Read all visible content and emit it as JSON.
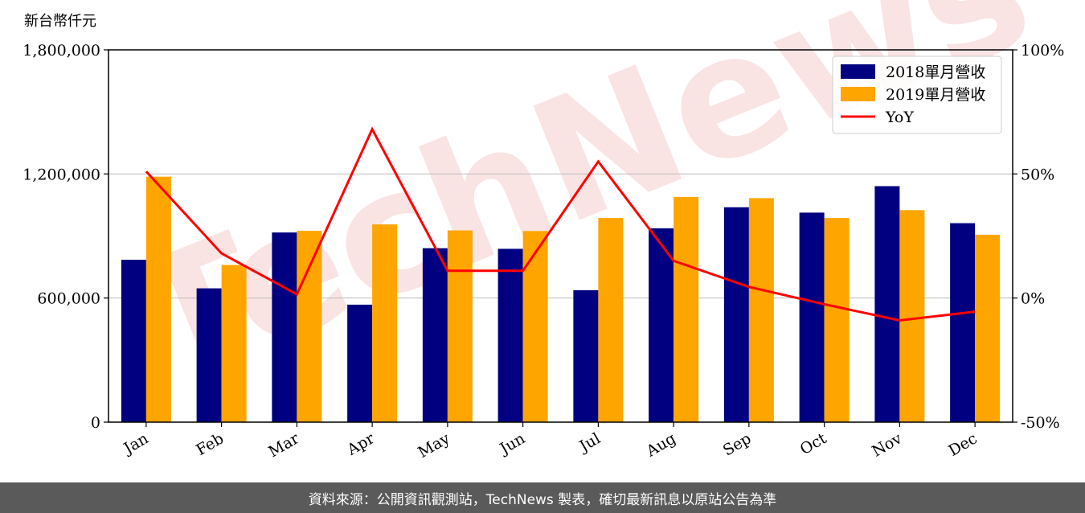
{
  "chart_data": {
    "type": "bar",
    "ylabel": "新台幣仟元",
    "categories": [
      "Jan",
      "Feb",
      "Mar",
      "Apr",
      "May",
      "Jun",
      "Jul",
      "Aug",
      "Sep",
      "Oct",
      "Nov",
      "Dec"
    ],
    "series": [
      {
        "name": "2018單月營收",
        "color": "#000080",
        "values": [
          785000,
          647000,
          917000,
          568000,
          841000,
          838000,
          638000,
          937000,
          1039000,
          1013000,
          1141000,
          962000
        ]
      },
      {
        "name": "2019單月營收",
        "color": "#ffa500",
        "values": [
          1187000,
          760000,
          925000,
          956000,
          927000,
          924000,
          987000,
          1089000,
          1083000,
          987000,
          1025000,
          906000
        ]
      }
    ],
    "line_series": {
      "name": "YoY",
      "color": "#ff0000",
      "axis": "right",
      "values": [
        51,
        18,
        1.5,
        68,
        11,
        11,
        55,
        15,
        4.5,
        -2.5,
        -9,
        -5.5
      ]
    },
    "ylim": [
      0,
      1800000
    ],
    "y_ticks": [
      "0",
      "600,000",
      "1,200,000",
      "1,800,000"
    ],
    "y_tick_values": [
      0,
      600000,
      1200000,
      1800000
    ],
    "y2lim": [
      -50,
      100
    ],
    "y2_ticks": [
      "-50%",
      "0%",
      "50%",
      "100%"
    ],
    "y2_tick_values": [
      -50,
      0,
      50,
      100
    ],
    "grid": "horizontal",
    "legend_position": "top-right"
  },
  "watermark": "TechNews",
  "footer": {
    "source": "資料來源：公開資訊觀測站，TechNews 製表，確切最新訊息以原站公告為準"
  }
}
